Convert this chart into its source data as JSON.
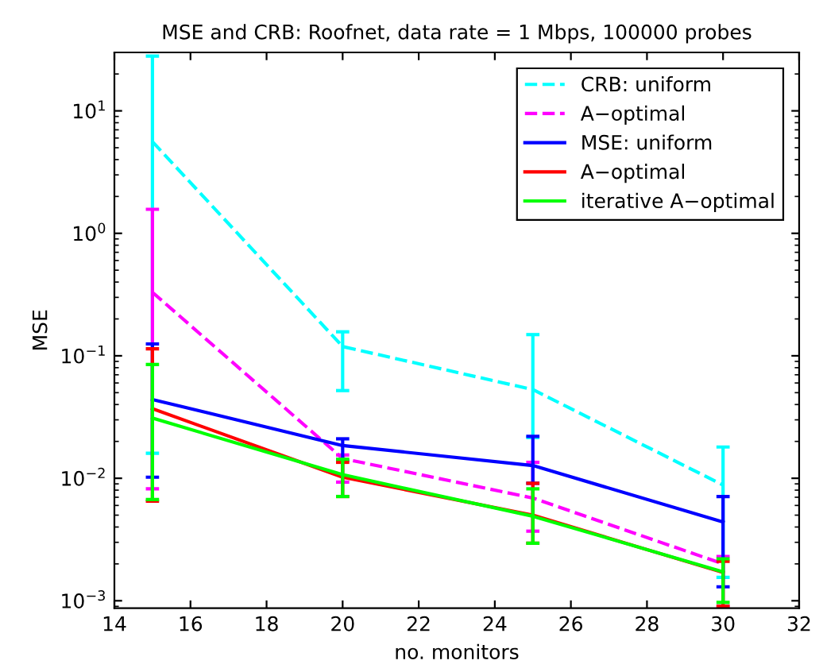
{
  "chart_data": {
    "type": "line",
    "title": "MSE and CRB: Roofnet, data rate = 1 Mbps, 100000 probes",
    "xlabel": "no. monitors",
    "ylabel": "MSE",
    "x": [
      15,
      20,
      25,
      30
    ],
    "series": [
      {
        "name": "CRB: uniform",
        "color": "#00ffff",
        "line_style": "dashed",
        "values": [
          5.6,
          0.119,
          0.053,
          0.0088
        ],
        "errors": [
          [
            0.016,
            28
          ],
          [
            0.052,
            0.157
          ],
          [
            0.0215,
            0.149
          ],
          [
            0.00155,
            0.018
          ]
        ]
      },
      {
        "name": "A−optimal",
        "color": "#ff00ff",
        "line_style": "dashed",
        "values": [
          0.33,
          0.0145,
          0.0069,
          0.002
        ],
        "errors": [
          [
            0.0082,
            1.57
          ],
          [
            0.0093,
            0.0155
          ],
          [
            0.0037,
            0.0135
          ],
          [
            0.0009,
            0.0023
          ]
        ]
      },
      {
        "name": "MSE: uniform",
        "color": "#0000ff",
        "line_style": "solid",
        "values": [
          0.044,
          0.0185,
          0.0127,
          0.0044
        ],
        "errors": [
          [
            0.0102,
            0.125
          ],
          [
            0.014,
            0.021
          ],
          [
            0.0091,
            0.022
          ],
          [
            0.0013,
            0.0071
          ]
        ]
      },
      {
        "name": "A−optimal",
        "color": "#ff0000",
        "line_style": "solid",
        "values": [
          0.037,
          0.0102,
          0.005,
          0.0017
        ],
        "errors": [
          [
            0.0065,
            0.114
          ],
          [
            0.0071,
            0.0135
          ],
          [
            0.00295,
            0.0091
          ],
          [
            0.0009,
            0.0021
          ]
        ]
      },
      {
        "name": "iterative A−optimal",
        "color": "#00ff00",
        "line_style": "solid",
        "values": [
          0.031,
          0.0107,
          0.0049,
          0.00172
        ],
        "errors": [
          [
            0.0067,
            0.085
          ],
          [
            0.0071,
            0.0143
          ],
          [
            0.00295,
            0.0082
          ],
          [
            0.00097,
            0.0022
          ]
        ]
      }
    ],
    "log": "y",
    "xlim": [
      14,
      32
    ],
    "xticks": [
      14,
      16,
      18,
      20,
      22,
      24,
      26,
      28,
      30,
      32
    ],
    "ylim": [
      0.00087,
      30
    ],
    "yticks": [
      {
        "value": 0.001,
        "label": "10$^{−3}$"
      },
      {
        "value": 0.01,
        "label": "10$^{−2}$"
      },
      {
        "value": 0.1,
        "label": "10$^{−1}$"
      },
      {
        "value": 1,
        "label": "10$^{0}$"
      },
      {
        "value": 10,
        "label": "10$^{1}$"
      }
    ],
    "grid": false,
    "legend": "top right",
    "marker": "none"
  }
}
